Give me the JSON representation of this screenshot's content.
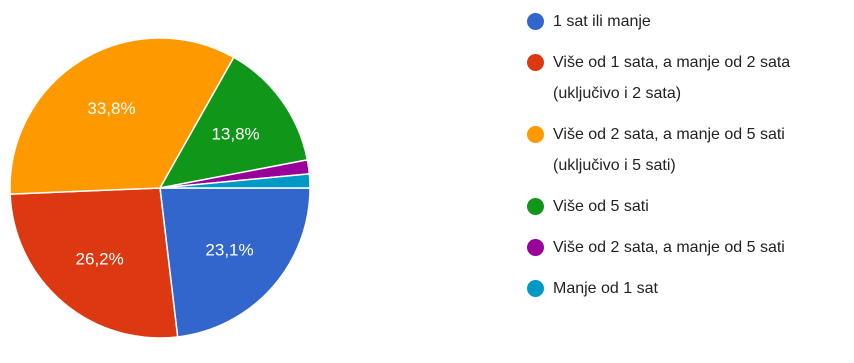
{
  "chart_data": {
    "type": "pie",
    "series": [
      {
        "name": "1 sat ili manje",
        "value": 23.1,
        "label": "23,1%",
        "color": "#3366CC"
      },
      {
        "name": "Više od 1 sata, a manje od 2 sata (uključivo i 2 sata)",
        "value": 26.2,
        "label": "26,2%",
        "color": "#DC3912"
      },
      {
        "name": "Više od 2 sata, a manje od 5 sati (uključivo i 5 sati)",
        "value": 33.8,
        "label": "33,8%",
        "color": "#FF9900"
      },
      {
        "name": "Više od 5 sati",
        "value": 13.8,
        "label": "13,8%",
        "color": "#109618"
      },
      {
        "name": "Više od 2 sata, a manje od 5 sati",
        "value": 1.5,
        "label": "",
        "color": "#990099"
      },
      {
        "name": "Manje od 1 sat",
        "value": 1.5,
        "label": "",
        "color": "#0099C6"
      }
    ],
    "legend_position": "right"
  }
}
